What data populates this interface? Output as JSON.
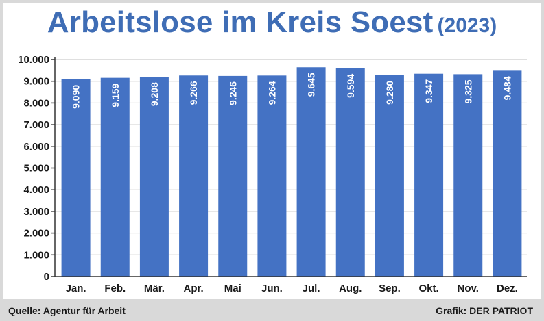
{
  "title": "Arbeitslose im Kreis Soest",
  "title_suffix": "(2023)",
  "footer": {
    "source": "Quelle: Agentur für Arbeit",
    "credit": "Grafik: DER PATRIOT"
  },
  "colors": {
    "bar": "#4472c4",
    "title": "#3f6db5",
    "grid": "#bfbfbf"
  },
  "chart_data": {
    "type": "bar",
    "categories": [
      "Jan.",
      "Feb.",
      "Mär.",
      "Apr.",
      "Mai",
      "Jun.",
      "Jul.",
      "Aug.",
      "Sep.",
      "Okt.",
      "Nov.",
      "Dez."
    ],
    "values": [
      9090,
      9159,
      9208,
      9266,
      9246,
      9264,
      9645,
      9594,
      9280,
      9347,
      9325,
      9484
    ],
    "value_labels": [
      "9.090",
      "9.159",
      "9.208",
      "9.266",
      "9.246",
      "9.264",
      "9.645",
      "9.594",
      "9.280",
      "9.347",
      "9.325",
      "9.484"
    ],
    "y_ticks": [
      0,
      1000,
      2000,
      3000,
      4000,
      5000,
      6000,
      7000,
      8000,
      9000,
      10000
    ],
    "y_tick_labels": [
      "0",
      "1.000",
      "2.000",
      "3.000",
      "4.000",
      "5.000",
      "6.000",
      "7.000",
      "8.000",
      "9.000",
      "10.000"
    ],
    "ylim": [
      0,
      10000
    ],
    "grid": true,
    "legend": "none"
  }
}
